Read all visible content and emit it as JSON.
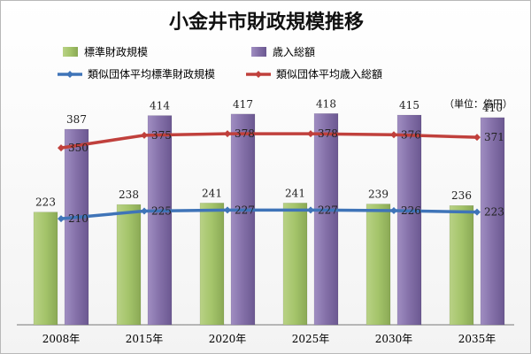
{
  "chart_data": {
    "type": "bar",
    "title": "小金井市財政規模推移",
    "unit_label": "（単位：億円）",
    "categories": [
      "2008年",
      "2015年",
      "2020年",
      "2025年",
      "2030年",
      "2035年"
    ],
    "ylim": [
      0,
      450
    ],
    "grid": false,
    "legend_position": "top",
    "series": [
      {
        "name": "標準財政規模",
        "kind": "bar",
        "color": "#a4c46a",
        "values": [
          223,
          238,
          241,
          241,
          239,
          236
        ]
      },
      {
        "name": "歳入総額",
        "kind": "bar",
        "color": "#8470a8",
        "values": [
          387,
          414,
          417,
          418,
          415,
          410
        ]
      },
      {
        "name": "類似団体平均標準財政規模",
        "kind": "line",
        "color": "#3f74b8",
        "values": [
          210,
          225,
          227,
          227,
          226,
          223
        ]
      },
      {
        "name": "類似団体平均歳入総額",
        "kind": "line",
        "color": "#c0403c",
        "values": [
          350,
          375,
          378,
          378,
          376,
          371
        ]
      }
    ]
  }
}
